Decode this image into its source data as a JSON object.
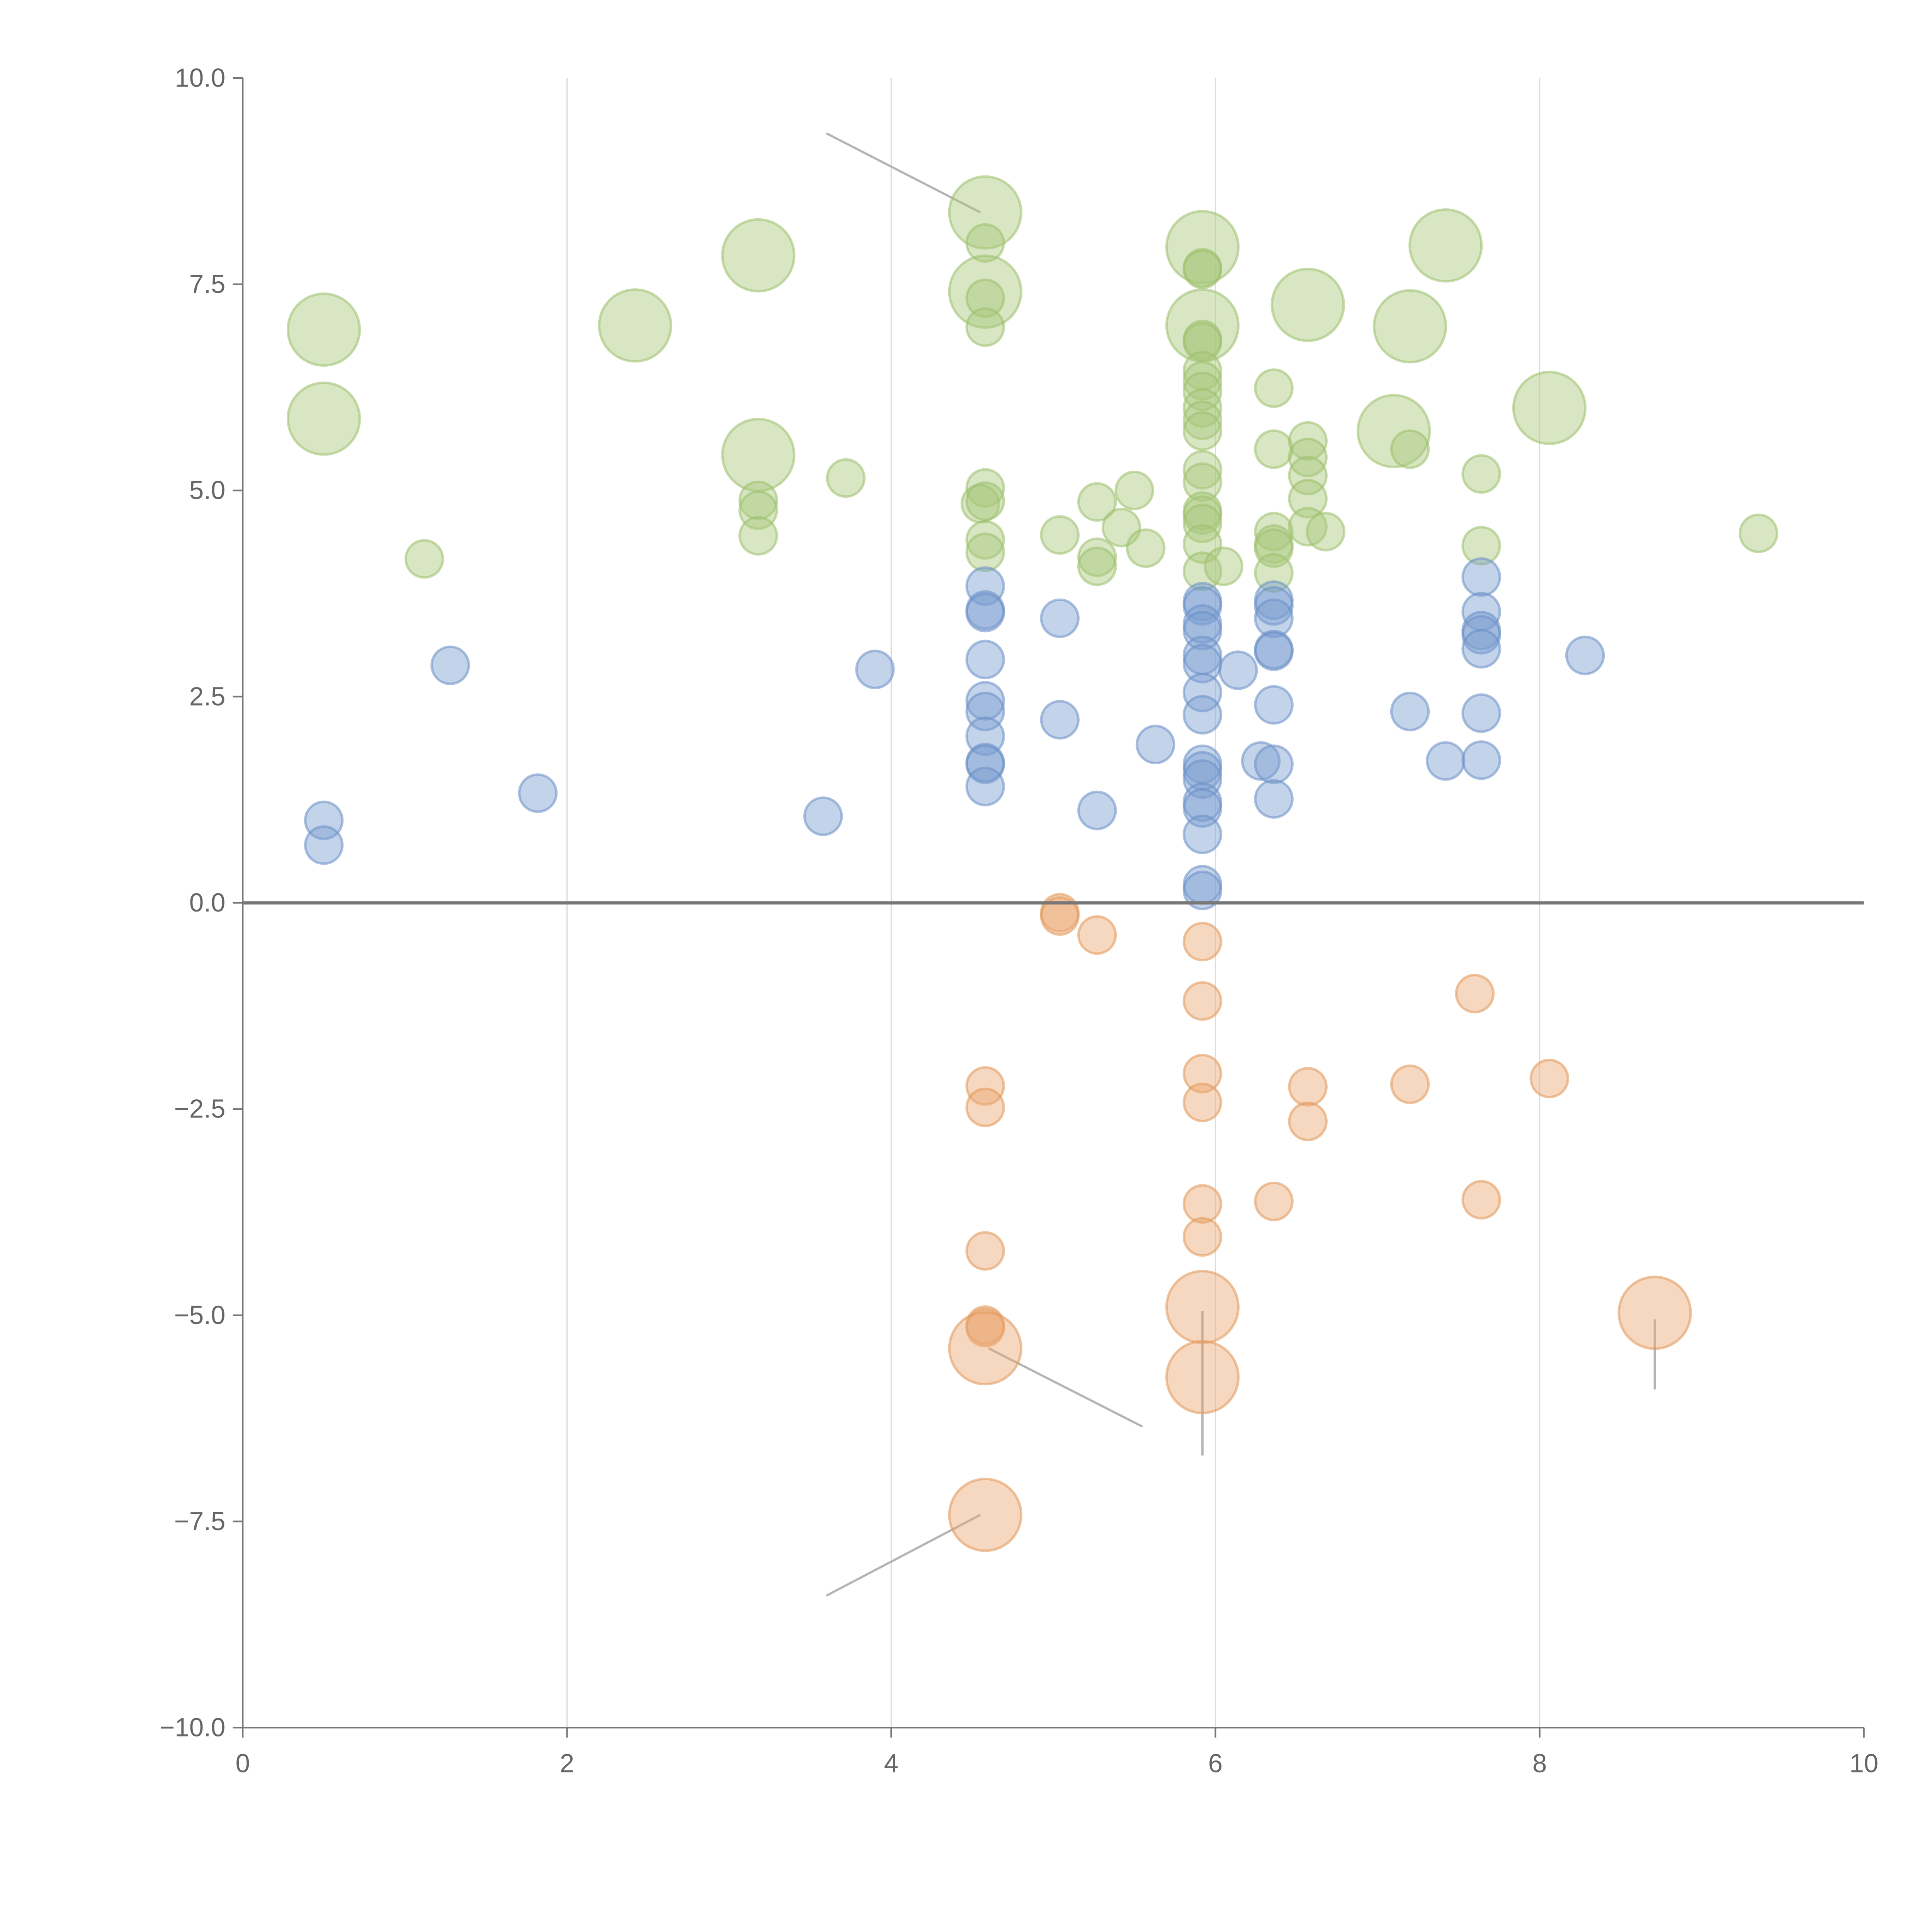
{
  "chart_data": {
    "type": "scatter",
    "title": "",
    "xlabel": "",
    "ylabel": "",
    "xlim": [
      0,
      10
    ],
    "ylim": [
      -10,
      10
    ],
    "grid": "vertical",
    "x_ticks": [
      "0",
      "2",
      "4",
      "6",
      "8",
      "10"
    ],
    "y_ticks": [
      "10.0",
      "7.5",
      "5.0",
      "2.5",
      "0.0",
      "−2.5",
      "−5.0",
      "−7.5",
      "−10.0"
    ],
    "size_note": "size 1 = small bubble, 2 = large bubble",
    "series": [
      {
        "name": "green",
        "color": "#a9c77d",
        "stroke": "#9cbf6c",
        "points": [
          [
            0.5,
            6.95,
            2
          ],
          [
            0.5,
            5.87,
            2
          ],
          [
            1.12,
            4.17,
            1
          ],
          [
            2.42,
            7.0,
            2
          ],
          [
            3.18,
            7.85,
            2
          ],
          [
            3.18,
            5.43,
            2
          ],
          [
            3.18,
            4.88,
            1
          ],
          [
            3.18,
            4.76,
            1
          ],
          [
            3.18,
            4.45,
            1
          ],
          [
            3.72,
            5.15,
            1
          ],
          [
            4.58,
            8.37,
            2
          ],
          [
            4.58,
            8.0,
            1
          ],
          [
            4.58,
            7.41,
            2
          ],
          [
            4.58,
            7.33,
            1
          ],
          [
            4.58,
            6.98,
            1
          ],
          [
            4.58,
            5.03,
            1
          ],
          [
            4.55,
            4.84,
            1
          ],
          [
            4.58,
            4.87,
            1
          ],
          [
            4.58,
            4.4,
            1
          ],
          [
            4.58,
            4.25,
            1
          ],
          [
            5.04,
            4.46,
            1
          ],
          [
            5.27,
            4.86,
            1
          ],
          [
            5.27,
            4.19,
            1
          ],
          [
            5.27,
            4.08,
            1
          ],
          [
            5.42,
            4.55,
            1
          ],
          [
            5.5,
            5.0,
            1
          ],
          [
            5.57,
            4.3,
            1
          ],
          [
            5.92,
            7.95,
            2
          ],
          [
            5.92,
            7.7,
            1
          ],
          [
            5.92,
            7.68,
            1
          ],
          [
            5.92,
            7.0,
            2
          ],
          [
            5.92,
            6.83,
            1
          ],
          [
            5.92,
            6.8,
            1
          ],
          [
            5.92,
            6.45,
            1
          ],
          [
            5.92,
            6.33,
            1
          ],
          [
            5.92,
            6.2,
            1
          ],
          [
            5.92,
            6.0,
            1
          ],
          [
            5.92,
            5.85,
            1
          ],
          [
            5.92,
            5.72,
            1
          ],
          [
            5.92,
            5.25,
            1
          ],
          [
            5.92,
            5.1,
            1
          ],
          [
            5.92,
            4.75,
            1
          ],
          [
            5.92,
            4.7,
            1
          ],
          [
            5.92,
            4.6,
            1
          ],
          [
            5.92,
            4.35,
            1
          ],
          [
            5.92,
            4.02,
            1
          ],
          [
            6.05,
            4.08,
            1
          ],
          [
            6.36,
            6.24,
            1
          ],
          [
            6.36,
            5.5,
            1
          ],
          [
            6.36,
            4.5,
            1
          ],
          [
            6.36,
            4.35,
            1
          ],
          [
            6.36,
            4.3,
            1
          ],
          [
            6.36,
            4.0,
            1
          ],
          [
            6.57,
            7.25,
            2
          ],
          [
            6.57,
            5.6,
            1
          ],
          [
            6.57,
            5.4,
            1
          ],
          [
            6.57,
            5.18,
            1
          ],
          [
            6.57,
            4.9,
            1
          ],
          [
            6.57,
            4.56,
            1
          ],
          [
            6.68,
            4.5,
            1
          ],
          [
            7.1,
            5.72,
            2
          ],
          [
            7.2,
            6.99,
            2
          ],
          [
            7.2,
            5.5,
            1
          ],
          [
            7.42,
            7.97,
            2
          ],
          [
            7.64,
            5.2,
            1
          ],
          [
            7.64,
            4.33,
            1
          ],
          [
            8.06,
            6.0,
            2
          ],
          [
            9.35,
            4.48,
            1
          ]
        ]
      },
      {
        "name": "blue",
        "color": "#7a9dd0",
        "stroke": "#6a8fc6",
        "points": [
          [
            0.5,
            1.0,
            1
          ],
          [
            0.5,
            0.7,
            1
          ],
          [
            1.28,
            2.88,
            1
          ],
          [
            1.82,
            1.33,
            1
          ],
          [
            3.58,
            1.05,
            1
          ],
          [
            3.9,
            2.83,
            1
          ],
          [
            4.58,
            3.84,
            1
          ],
          [
            4.58,
            3.55,
            1
          ],
          [
            4.58,
            3.52,
            1
          ],
          [
            4.58,
            2.95,
            1
          ],
          [
            4.58,
            2.45,
            1
          ],
          [
            4.58,
            2.32,
            1
          ],
          [
            4.58,
            2.02,
            1
          ],
          [
            4.58,
            1.7,
            1
          ],
          [
            4.58,
            1.68,
            1
          ],
          [
            4.58,
            1.41,
            1
          ],
          [
            5.04,
            3.45,
            1
          ],
          [
            5.04,
            2.22,
            1
          ],
          [
            5.27,
            1.12,
            1
          ],
          [
            5.63,
            1.92,
            1
          ],
          [
            5.92,
            3.65,
            1
          ],
          [
            5.92,
            3.6,
            1
          ],
          [
            5.92,
            3.38,
            1
          ],
          [
            5.92,
            3.3,
            1
          ],
          [
            5.92,
            3.0,
            1
          ],
          [
            5.92,
            2.9,
            1
          ],
          [
            5.92,
            2.55,
            1
          ],
          [
            5.92,
            2.28,
            1
          ],
          [
            5.92,
            1.68,
            1
          ],
          [
            5.92,
            1.6,
            1
          ],
          [
            5.92,
            1.5,
            1
          ],
          [
            5.92,
            1.22,
            1
          ],
          [
            5.92,
            1.15,
            1
          ],
          [
            5.92,
            0.83,
            1
          ],
          [
            5.92,
            0.22,
            1
          ],
          [
            5.92,
            0.15,
            1
          ],
          [
            6.14,
            2.82,
            1
          ],
          [
            6.28,
            1.72,
            1
          ],
          [
            6.36,
            3.67,
            1
          ],
          [
            6.36,
            3.6,
            1
          ],
          [
            6.36,
            3.45,
            1
          ],
          [
            6.36,
            3.07,
            1
          ],
          [
            6.36,
            3.05,
            1
          ],
          [
            6.36,
            2.4,
            1
          ],
          [
            6.36,
            1.68,
            1
          ],
          [
            6.36,
            1.26,
            1
          ],
          [
            7.2,
            2.32,
            1
          ],
          [
            7.42,
            1.72,
            1
          ],
          [
            7.64,
            3.95,
            1
          ],
          [
            7.64,
            3.53,
            1
          ],
          [
            7.64,
            3.3,
            1
          ],
          [
            7.64,
            3.25,
            1
          ],
          [
            7.64,
            3.08,
            1
          ],
          [
            7.64,
            2.3,
            1
          ],
          [
            7.64,
            1.73,
            1
          ],
          [
            8.28,
            3.0,
            1
          ]
        ]
      },
      {
        "name": "orange",
        "color": "#eaa772",
        "stroke": "#e29858",
        "points": [
          [
            5.04,
            -0.12,
            1
          ],
          [
            5.04,
            -0.16,
            1
          ],
          [
            5.27,
            -0.39,
            1
          ],
          [
            5.92,
            -0.47,
            1
          ],
          [
            5.92,
            -1.19,
            1
          ],
          [
            5.92,
            -2.07,
            1
          ],
          [
            5.92,
            -2.42,
            1
          ],
          [
            5.92,
            -3.65,
            1
          ],
          [
            5.92,
            -4.05,
            1
          ],
          [
            5.92,
            -4.9,
            2
          ],
          [
            5.92,
            -5.75,
            2
          ],
          [
            4.58,
            -2.22,
            1
          ],
          [
            4.58,
            -2.48,
            1
          ],
          [
            4.58,
            -4.22,
            1
          ],
          [
            4.58,
            -5.12,
            1
          ],
          [
            4.58,
            -5.15,
            1
          ],
          [
            4.58,
            -5.4,
            2
          ],
          [
            4.58,
            -7.42,
            2
          ],
          [
            6.36,
            -3.62,
            1
          ],
          [
            6.57,
            -2.23,
            1
          ],
          [
            6.57,
            -2.65,
            1
          ],
          [
            7.2,
            -2.2,
            1
          ],
          [
            7.6,
            -1.1,
            1
          ],
          [
            7.64,
            -3.6,
            1
          ],
          [
            8.06,
            -2.13,
            1
          ],
          [
            8.71,
            -4.97,
            2
          ]
        ]
      }
    ]
  }
}
